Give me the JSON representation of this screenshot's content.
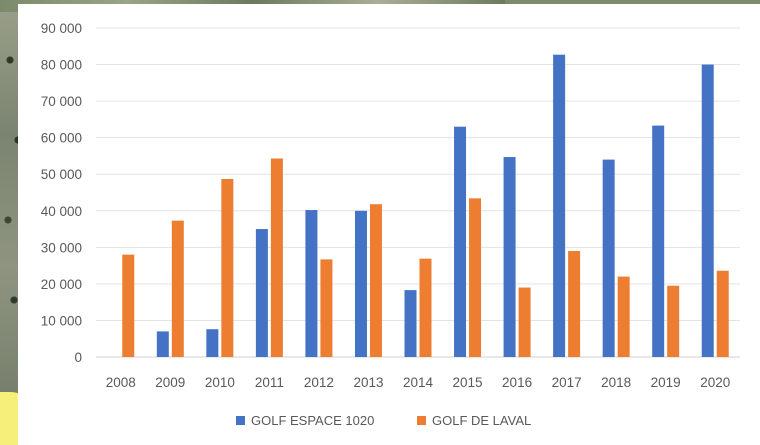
{
  "chart_data": {
    "type": "bar",
    "title": "",
    "xlabel": "",
    "ylabel": "",
    "categories": [
      "2008",
      "2009",
      "2010",
      "2011",
      "2012",
      "2013",
      "2014",
      "2015",
      "2016",
      "2017",
      "2018",
      "2019",
      "2020"
    ],
    "series": [
      {
        "name": "GOLF ESPACE 1020",
        "color": "#4472c4",
        "values": [
          0,
          7000,
          7600,
          35000,
          40200,
          40000,
          18300,
          63000,
          54700,
          82700,
          54000,
          63300,
          80000
        ]
      },
      {
        "name": "GOLF DE LAVAL",
        "color": "#ed7d31",
        "values": [
          28000,
          37300,
          48700,
          54300,
          26700,
          41800,
          26900,
          43400,
          19000,
          29000,
          22000,
          19500,
          23600
        ]
      }
    ],
    "ylim": [
      0,
      90000
    ],
    "yticks": [
      0,
      10000,
      20000,
      30000,
      40000,
      50000,
      60000,
      70000,
      80000,
      90000
    ],
    "ytick_labels": [
      "0",
      "10 000",
      "20 000",
      "30 000",
      "40 000",
      "50 000",
      "60 000",
      "70 000",
      "80 000",
      "90 000"
    ],
    "grid": true,
    "legend_position": "bottom"
  }
}
